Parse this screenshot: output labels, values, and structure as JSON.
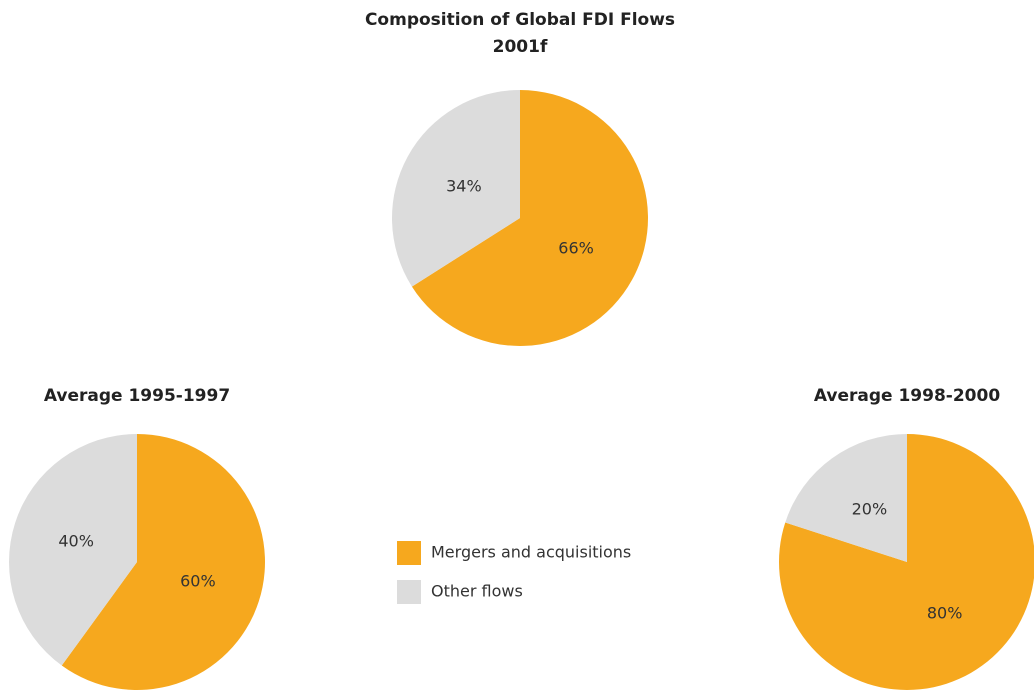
{
  "chart_data": [
    {
      "type": "pie",
      "title": "Composition of Global FDI Flows",
      "subtitle": "2001f",
      "categories": [
        "Mergers and acquisitions",
        "Other flows"
      ],
      "values": [
        66,
        34
      ],
      "value_labels": [
        "66%",
        "34%"
      ],
      "colors": [
        "#f6a81e",
        "#dcdcdc"
      ]
    },
    {
      "type": "pie",
      "title": "Average 1995-1997",
      "categories": [
        "Mergers and acquisitions",
        "Other flows"
      ],
      "values": [
        60,
        40
      ],
      "value_labels": [
        "60%",
        "40%"
      ],
      "colors": [
        "#f6a81e",
        "#dcdcdc"
      ]
    },
    {
      "type": "pie",
      "title": "Average 1998-2000",
      "categories": [
        "Mergers and acquisitions",
        "Other flows"
      ],
      "values": [
        80,
        20
      ],
      "value_labels": [
        "80%",
        "20%"
      ],
      "colors": [
        "#f6a81e",
        "#dcdcdc"
      ]
    }
  ]
}
